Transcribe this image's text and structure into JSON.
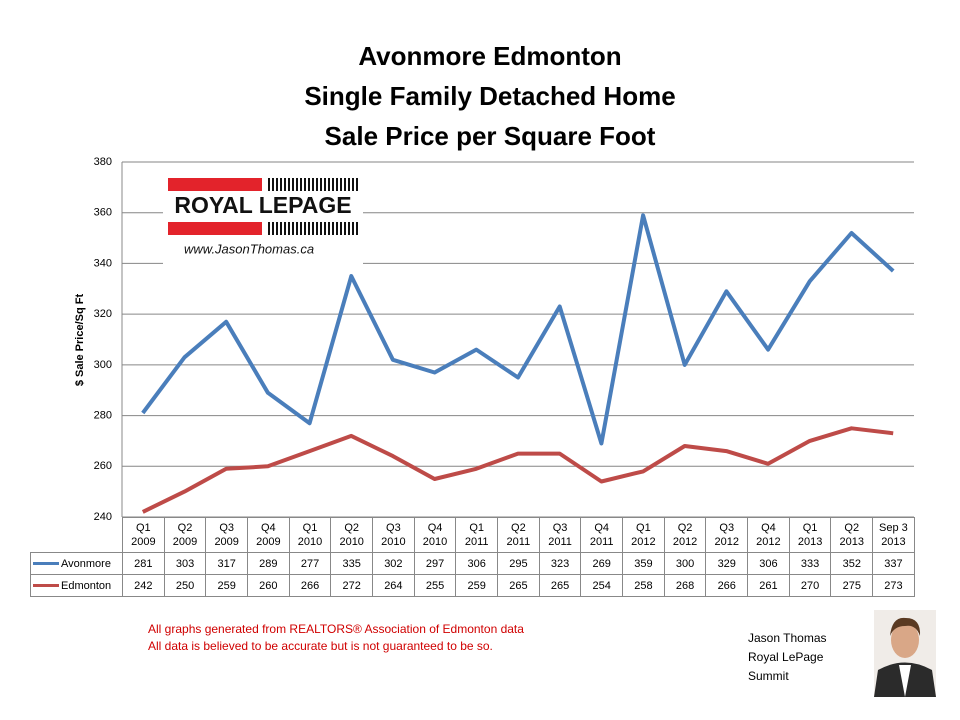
{
  "chart_data": {
    "type": "line",
    "title": "Avonmore Edmonton\nSingle Family Detached Home\nSale Price per Square Foot",
    "y_label": "$ Sale Price/Sq Ft",
    "categories": [
      "Q1\n2009",
      "Q2\n2009",
      "Q3\n2009",
      "Q4\n2009",
      "Q1\n2010",
      "Q2\n2010",
      "Q3\n2010",
      "Q4\n2010",
      "Q1\n2011",
      "Q2\n2011",
      "Q3\n2011",
      "Q4\n2011",
      "Q1\n2012",
      "Q2\n2012",
      "Q3\n2012",
      "Q4\n2012",
      "Q1\n2013",
      "Q2\n2013",
      "Sep 3\n2013"
    ],
    "series": [
      {
        "name": "Avonmore",
        "color": "#4a7ebb",
        "values": [
          281,
          303,
          317,
          289,
          277,
          335,
          302,
          297,
          306,
          295,
          323,
          269,
          359,
          300,
          329,
          306,
          333,
          352,
          337
        ]
      },
      {
        "name": "Edmonton",
        "color": "#be4b48",
        "values": [
          242,
          250,
          259,
          260,
          266,
          272,
          264,
          255,
          259,
          265,
          265,
          254,
          258,
          268,
          266,
          261,
          270,
          275,
          273
        ]
      }
    ],
    "ylim": [
      240,
      380
    ],
    "yticks": [
      240,
      260,
      280,
      300,
      320,
      340,
      360,
      380
    ],
    "grid": true
  },
  "logo": {
    "brand": "ROYAL LEPAGE",
    "url": "www.JasonThomas.ca"
  },
  "notes": [
    "All graphs generated from REALTORS® Association of Edmonton data",
    "All data is believed to be accurate but is not guaranteed to be so."
  ],
  "signature": [
    "Jason Thomas",
    "Royal LePage",
    "Summit"
  ]
}
